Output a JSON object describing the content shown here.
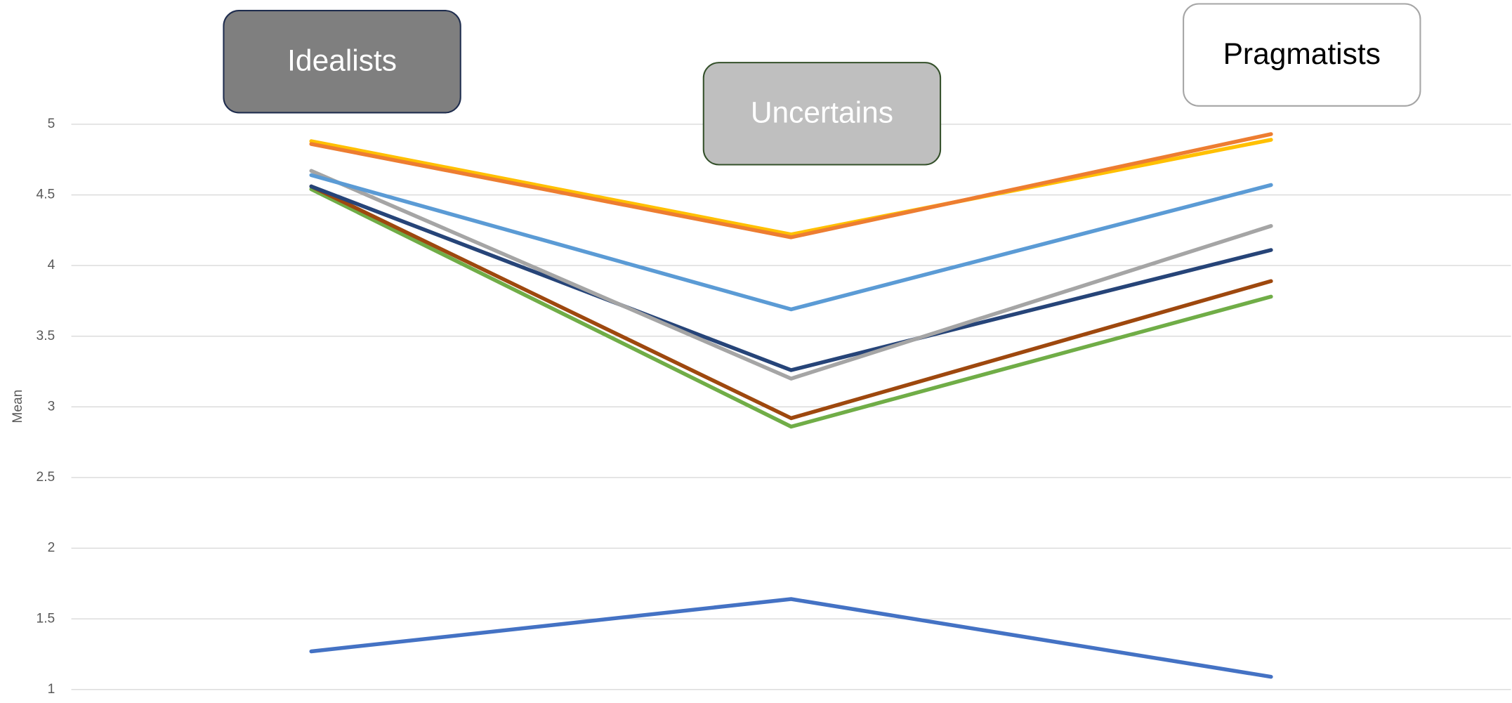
{
  "chart_data": {
    "type": "line",
    "y_label": "Mean",
    "categories": [
      "Idealists",
      "Uncertains",
      "Pragmatists"
    ],
    "ylim": [
      1,
      5
    ],
    "yticks": [
      1,
      1.5,
      2,
      2.5,
      3,
      3.5,
      4,
      4.5,
      5
    ],
    "grid": true,
    "series": [
      {
        "color": "#ED7D31",
        "values": [
          4.86,
          4.2,
          4.93
        ]
      },
      {
        "color": "#FFC000",
        "values": [
          4.88,
          4.22,
          4.89
        ]
      },
      {
        "color": "#5B9BD5",
        "values": [
          4.64,
          3.69,
          4.57
        ]
      },
      {
        "color": "#A5A5A5",
        "values": [
          4.67,
          3.2,
          4.28
        ]
      },
      {
        "color": "#264478",
        "values": [
          4.56,
          3.26,
          4.11
        ]
      },
      {
        "color": "#9E480E",
        "values": [
          4.56,
          2.92,
          3.89
        ]
      },
      {
        "color": "#70AD47",
        "values": [
          4.54,
          2.86,
          3.78
        ]
      },
      {
        "color": "#4472C4",
        "values": [
          1.27,
          1.64,
          1.09
        ]
      }
    ]
  }
}
